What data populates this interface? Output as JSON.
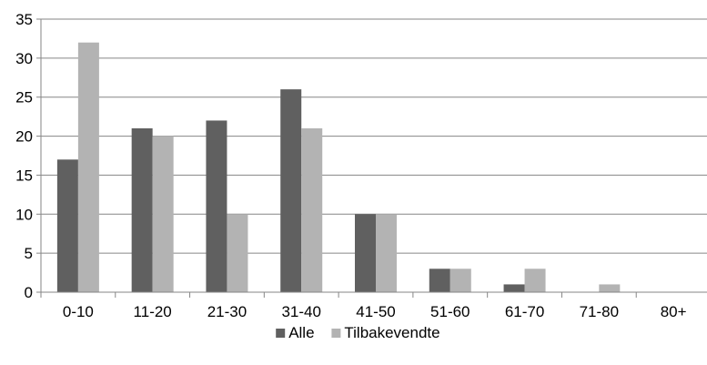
{
  "chart_data": {
    "type": "bar",
    "categories": [
      "0-10",
      "11-20",
      "21-30",
      "31-40",
      "41-50",
      "51-60",
      "61-70",
      "71-80",
      "80+"
    ],
    "series": [
      {
        "name": "Alle",
        "values": [
          17,
          21,
          22,
          26,
          10,
          3,
          1,
          0,
          0
        ],
        "color": "#606060"
      },
      {
        "name": "Tilbakevendte",
        "values": [
          32,
          20,
          10,
          21,
          10,
          3,
          3,
          1,
          0
        ],
        "color": "#b3b3b3"
      }
    ],
    "title": "",
    "xlabel": "",
    "ylabel": "",
    "ylim": [
      0,
      35
    ],
    "yticks": [
      0,
      5,
      10,
      15,
      20,
      25,
      30,
      35
    ],
    "grid": true,
    "legend_position": "bottom",
    "gridline_color": "#868686",
    "axis_color": "#868686"
  }
}
